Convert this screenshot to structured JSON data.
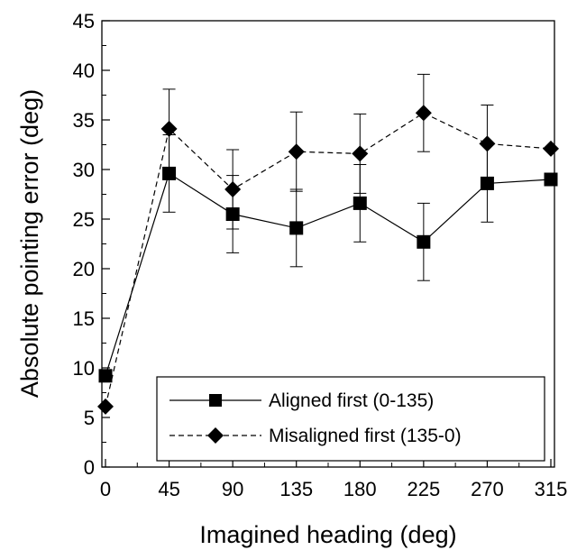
{
  "chart_data": {
    "type": "line",
    "xlabel": "Imagined heading (deg)",
    "ylabel": "Absolute pointing error (deg)",
    "x": [
      0,
      45,
      90,
      135,
      180,
      225,
      270,
      315
    ],
    "xticks": [
      "0",
      "45",
      "90",
      "135",
      "180",
      "225",
      "270",
      "315"
    ],
    "yticks": [
      "0",
      "5",
      "10",
      "15",
      "20",
      "25",
      "30",
      "35",
      "40",
      "45"
    ],
    "xlim": [
      0,
      315
    ],
    "ylim": [
      0,
      45
    ],
    "grid": false,
    "legend_position": "bottom-right",
    "series": [
      {
        "name": "Aligned first (0-135)",
        "marker": "square",
        "line_style": "solid",
        "color": "#000000",
        "values": [
          9.2,
          29.6,
          25.5,
          24.1,
          26.6,
          22.7,
          28.6,
          29.0
        ],
        "error": [
          null,
          3.9,
          3.9,
          3.9,
          3.9,
          3.9,
          3.9,
          null
        ]
      },
      {
        "name": "Misaligned first (135-0)",
        "marker": "diamond",
        "line_style": "dashed",
        "color": "#000000",
        "values": [
          6.1,
          34.1,
          28.0,
          31.8,
          31.6,
          35.7,
          32.6,
          32.1
        ],
        "error": [
          null,
          4.0,
          4.0,
          4.0,
          4.0,
          3.9,
          3.9,
          null
        ]
      }
    ]
  }
}
